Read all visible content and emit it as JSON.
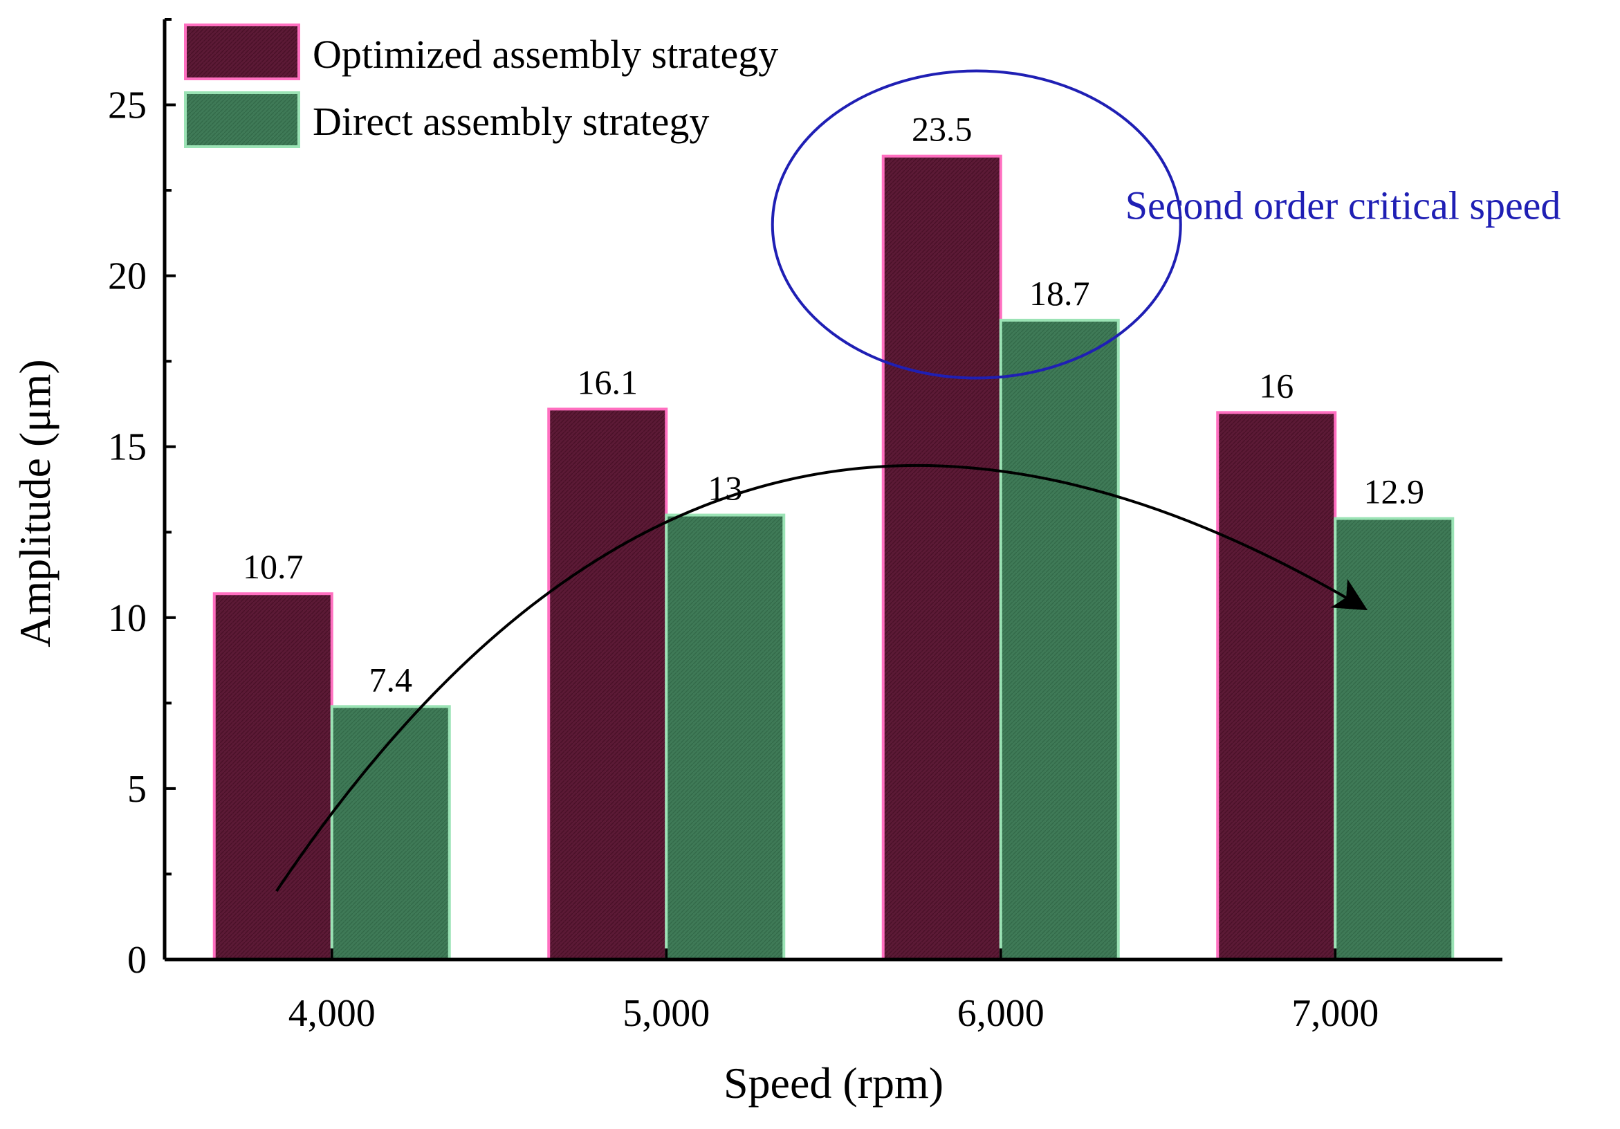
{
  "chart_data": {
    "type": "bar",
    "title": "",
    "xlabel": "Speed (rpm)",
    "ylabel": "Amplitude (μm)",
    "categories": [
      "4,000",
      "5,000",
      "6,000",
      "7,000"
    ],
    "series": [
      {
        "name": "Optimized assembly strategy",
        "values": [
          10.7,
          16.1,
          23.5,
          16
        ],
        "labels": [
          "10.7",
          "16.1",
          "23.5",
          "16"
        ],
        "color": "#5c1a36",
        "edge": "#ff6fc0"
      },
      {
        "name": "Direct assembly strategy",
        "values": [
          7.4,
          13,
          18.7,
          12.9
        ],
        "labels": [
          "7.4",
          "13",
          "18.7",
          "12.9"
        ],
        "color": "#3f7a57",
        "edge": "#9be3b5"
      }
    ],
    "ylim": [
      0,
      27.5
    ],
    "yticks": [
      0,
      5,
      10,
      15,
      20,
      25
    ],
    "yticklabels": [
      "0",
      "5",
      "10",
      "15",
      "20",
      "25"
    ],
    "grid": false,
    "legend_position": "top-left",
    "annotations": [
      {
        "type": "ellipse",
        "text": "Second order critical speed",
        "target_category": "6,000",
        "color": "#1f1fb4"
      },
      {
        "type": "trend-arrow",
        "from_category": "4,000",
        "to_category": "7,000",
        "color": "#000000"
      }
    ]
  }
}
